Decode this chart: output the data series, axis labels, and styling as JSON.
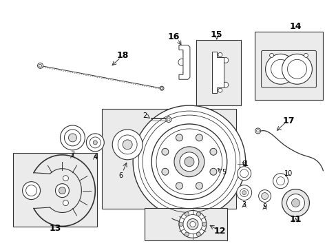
{
  "bg_color": "#ffffff",
  "fig_width": 4.89,
  "fig_height": 3.6,
  "dpi": 100,
  "gray": "#333333",
  "light_gray": "#cccccc",
  "fill_gray": "#e8e8e8"
}
